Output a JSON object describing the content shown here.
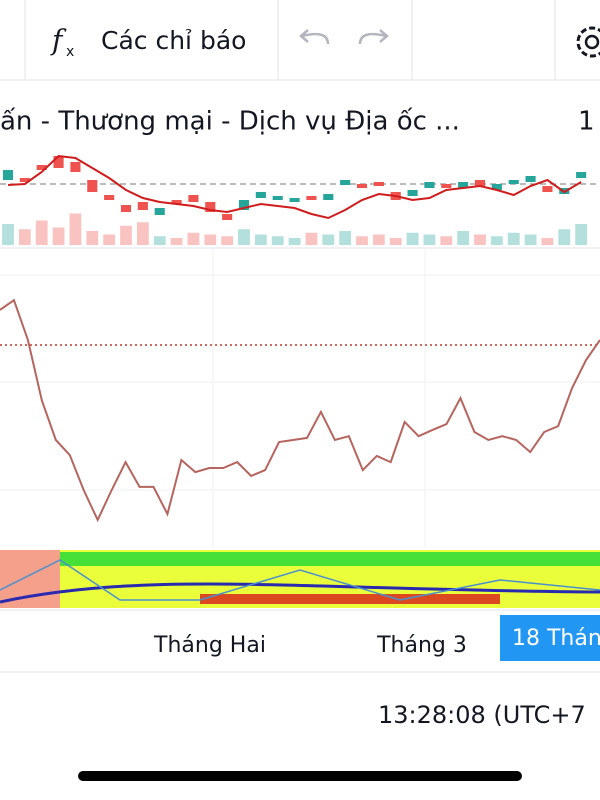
{
  "toolbar": {
    "indicators": "Các chỉ báo"
  },
  "symbol": {
    "title": "ấn - Thương mại - Dịch vụ Địa ốc ...",
    "interval": "1"
  },
  "price_panel": {
    "ylim": [
      0,
      100
    ],
    "level": 56,
    "up_color": "#26a69a",
    "down_color": "#ef5350",
    "ma_color": "#d01c1c",
    "candles": [
      [
        60,
        70
      ],
      [
        62,
        58
      ],
      [
        75,
        70
      ],
      [
        84,
        72
      ],
      [
        78,
        68
      ],
      [
        60,
        48
      ],
      [
        45,
        40
      ],
      [
        35,
        28
      ],
      [
        38,
        30
      ],
      [
        25,
        32
      ],
      [
        40,
        36
      ],
      [
        45,
        38
      ],
      [
        38,
        28
      ],
      [
        26,
        20
      ],
      [
        30,
        40
      ],
      [
        42,
        48
      ],
      [
        40,
        44
      ],
      [
        38,
        42
      ],
      [
        44,
        40
      ],
      [
        40,
        46
      ],
      [
        55,
        60
      ],
      [
        56,
        52
      ],
      [
        58,
        54
      ],
      [
        48,
        40
      ],
      [
        44,
        50
      ],
      [
        52,
        58
      ],
      [
        56,
        52
      ],
      [
        52,
        58
      ],
      [
        60,
        54
      ],
      [
        50,
        56
      ],
      [
        56,
        60
      ],
      [
        58,
        64
      ],
      [
        54,
        48
      ],
      [
        46,
        52
      ],
      [
        62,
        68
      ]
    ],
    "ma": [
      55,
      56,
      68,
      84,
      82,
      72,
      62,
      50,
      42,
      38,
      36,
      34,
      30,
      28,
      32,
      36,
      34,
      32,
      26,
      22,
      30,
      40,
      46,
      44,
      40,
      42,
      50,
      52,
      54,
      50,
      45,
      54,
      60,
      48,
      58
    ],
    "vlim": [
      0,
      100
    ],
    "volumes": [
      60,
      45,
      70,
      50,
      90,
      40,
      30,
      55,
      65,
      25,
      20,
      35,
      30,
      25,
      45,
      30,
      25,
      20,
      35,
      30,
      40,
      25,
      30,
      20,
      35,
      30,
      25,
      40,
      30,
      25,
      35,
      30,
      20,
      45,
      60
    ]
  },
  "oscillator": {
    "ylim": [
      0,
      100
    ],
    "level": 67.8,
    "color": "#b5655e",
    "values": [
      79.7,
      83,
      69.5,
      49,
      35.6,
      30.5,
      18.6,
      8.5,
      18.6,
      28.1,
      19.7,
      19.7,
      10.5,
      28.8,
      24.7,
      26.1,
      26.1,
      28.1,
      23.4,
      25.4,
      34.9,
      35.6,
      36.3,
      45.1,
      35.6,
      36.9,
      25.4,
      30.2,
      28.1,
      41.7,
      36.9,
      39,
      41,
      49.8,
      38.3,
      35.6,
      36.9,
      35.6,
      31.5,
      38.3,
      40.3,
      53.2,
      62.7,
      69.5
    ]
  },
  "x_axis": {
    "labels": [
      "Tháng Hai",
      "Tháng 3"
    ],
    "crosshair": "18 Thán"
  },
  "time": "13:28:08 (UTC+7"
}
